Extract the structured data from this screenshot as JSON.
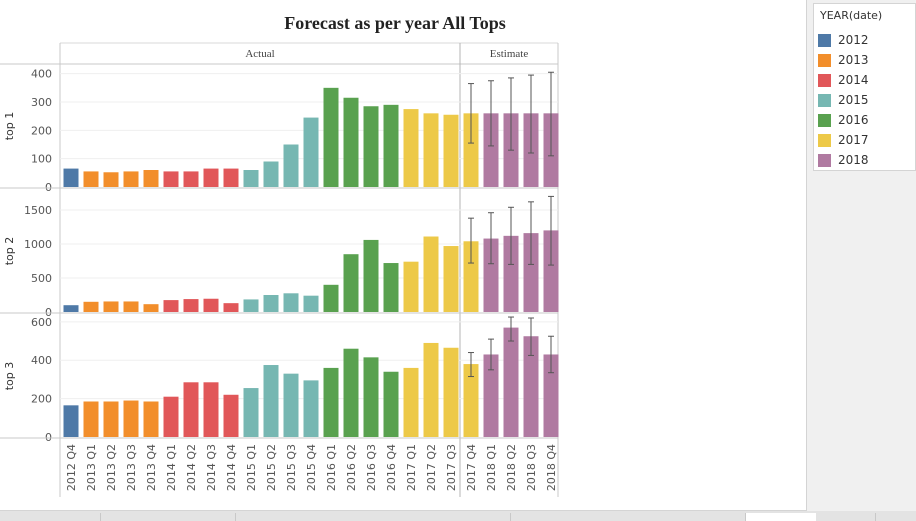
{
  "chart_data": {
    "type": "bar",
    "title": "Forecast as per year All  Tops",
    "column_headers": [
      "Actual",
      "Estimate"
    ],
    "categories": [
      "2012 Q4",
      "2013 Q1",
      "2013 Q2",
      "2013 Q3",
      "2013 Q4",
      "2014 Q1",
      "2014 Q2",
      "2014 Q3",
      "2014 Q4",
      "2015 Q1",
      "2015 Q2",
      "2015 Q3",
      "2015 Q4",
      "2016 Q1",
      "2016 Q2",
      "2016 Q3",
      "2016 Q4",
      "2017 Q1",
      "2017 Q2",
      "2017 Q3",
      "2017 Q4",
      "2018 Q1",
      "2018 Q2",
      "2018 Q3",
      "2018 Q4"
    ],
    "category_group": [
      "Actual",
      "Actual",
      "Actual",
      "Actual",
      "Actual",
      "Actual",
      "Actual",
      "Actual",
      "Actual",
      "Actual",
      "Actual",
      "Actual",
      "Actual",
      "Actual",
      "Actual",
      "Actual",
      "Actual",
      "Actual",
      "Actual",
      "Actual",
      "Estimate",
      "Estimate",
      "Estimate",
      "Estimate",
      "Estimate"
    ],
    "category_year": [
      "2012",
      "2013",
      "2013",
      "2013",
      "2013",
      "2014",
      "2014",
      "2014",
      "2014",
      "2015",
      "2015",
      "2015",
      "2015",
      "2016",
      "2016",
      "2016",
      "2016",
      "2017",
      "2017",
      "2017",
      "2017",
      "2018",
      "2018",
      "2018",
      "2018"
    ],
    "panels": [
      {
        "label": "top 1",
        "ylim": [
          0,
          420
        ],
        "ticks": [
          0,
          100,
          200,
          300,
          400
        ],
        "values": [
          65,
          55,
          52,
          55,
          60,
          55,
          55,
          65,
          65,
          60,
          90,
          150,
          245,
          350,
          315,
          285,
          290,
          275,
          260,
          255,
          260,
          260,
          260,
          260,
          260
        ],
        "error_low": [
          null,
          null,
          null,
          null,
          null,
          null,
          null,
          null,
          null,
          null,
          null,
          null,
          null,
          null,
          null,
          null,
          null,
          null,
          null,
          null,
          155,
          145,
          130,
          120,
          110
        ],
        "error_high": [
          null,
          null,
          null,
          null,
          null,
          null,
          null,
          null,
          null,
          null,
          null,
          null,
          null,
          null,
          null,
          null,
          null,
          null,
          null,
          null,
          365,
          375,
          385,
          395,
          405
        ]
      },
      {
        "label": "top 2",
        "ylim": [
          0,
          1750
        ],
        "ticks": [
          0,
          500,
          1000,
          1500
        ],
        "values": [
          100,
          150,
          155,
          155,
          115,
          175,
          190,
          195,
          130,
          185,
          250,
          275,
          240,
          400,
          850,
          1060,
          720,
          740,
          1110,
          970,
          1040,
          1080,
          1120,
          1160,
          1200
        ],
        "error_low": [
          null,
          null,
          null,
          null,
          null,
          null,
          null,
          null,
          null,
          null,
          null,
          null,
          null,
          null,
          null,
          null,
          null,
          null,
          null,
          null,
          720,
          710,
          700,
          700,
          690
        ],
        "error_high": [
          null,
          null,
          null,
          null,
          null,
          null,
          null,
          null,
          null,
          null,
          null,
          null,
          null,
          null,
          null,
          null,
          null,
          null,
          null,
          null,
          1380,
          1460,
          1540,
          1620,
          1700
        ]
      },
      {
        "label": "top 3",
        "ylim": [
          0,
          620
        ],
        "ticks": [
          0,
          200,
          400,
          600
        ],
        "values": [
          165,
          185,
          185,
          190,
          185,
          210,
          285,
          285,
          220,
          255,
          375,
          330,
          295,
          360,
          460,
          415,
          340,
          360,
          490,
          465,
          380,
          430,
          570,
          525,
          430
        ],
        "error_low": [
          null,
          null,
          null,
          null,
          null,
          null,
          null,
          null,
          null,
          null,
          null,
          null,
          null,
          null,
          null,
          null,
          null,
          null,
          null,
          null,
          315,
          350,
          500,
          425,
          335
        ],
        "error_high": [
          null,
          null,
          null,
          null,
          null,
          null,
          null,
          null,
          null,
          null,
          null,
          null,
          null,
          null,
          null,
          null,
          null,
          null,
          null,
          null,
          440,
          510,
          625,
          620,
          525
        ]
      }
    ],
    "legend": {
      "title": "YEAR(date)",
      "placement": "right",
      "items": [
        {
          "label": "2012",
          "color": "#4e79a7"
        },
        {
          "label": "2013",
          "color": "#f28e2b"
        },
        {
          "label": "2014",
          "color": "#e15759"
        },
        {
          "label": "2015",
          "color": "#76b7b2"
        },
        {
          "label": "2016",
          "color": "#59a14f"
        },
        {
          "label": "2017",
          "color": "#edc948"
        },
        {
          "label": "2018",
          "color": "#b07aa1"
        }
      ]
    },
    "grid": true
  }
}
